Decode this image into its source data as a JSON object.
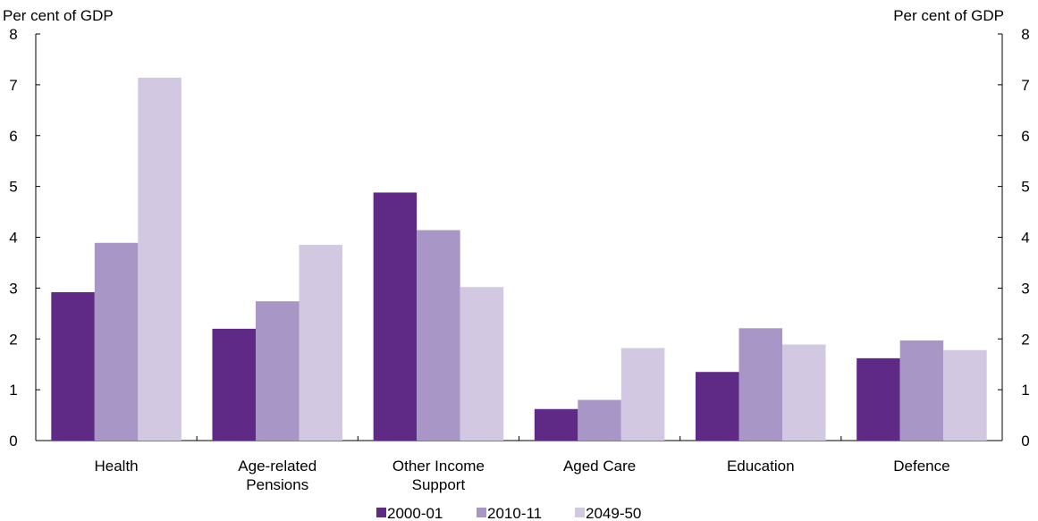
{
  "chart_data": {
    "type": "bar",
    "title": "",
    "xlabel": "",
    "ylabel_left": "Per cent of GDP",
    "ylabel_right": "Per cent of GDP",
    "ylim": [
      0,
      8
    ],
    "yticks": [
      0,
      1,
      2,
      3,
      4,
      5,
      6,
      7,
      8
    ],
    "grid": false,
    "legend_position": "bottom",
    "categories": [
      [
        "Health"
      ],
      [
        "Age-related",
        "Pensions"
      ],
      [
        "Other Income",
        "Support"
      ],
      [
        "Aged Care"
      ],
      [
        "Education"
      ],
      [
        "Defence"
      ]
    ],
    "series": [
      {
        "name": "2000-01",
        "color": "#5F2A85",
        "values": [
          2.92,
          2.2,
          4.88,
          0.62,
          1.35,
          1.62
        ]
      },
      {
        "name": "2010-11",
        "color": "#A896C6",
        "values": [
          3.89,
          2.74,
          4.14,
          0.8,
          2.21,
          1.97
        ]
      },
      {
        "name": "2049-50",
        "color": "#D2C8E2",
        "values": [
          7.14,
          3.85,
          3.02,
          1.82,
          1.89,
          1.78
        ]
      }
    ]
  }
}
